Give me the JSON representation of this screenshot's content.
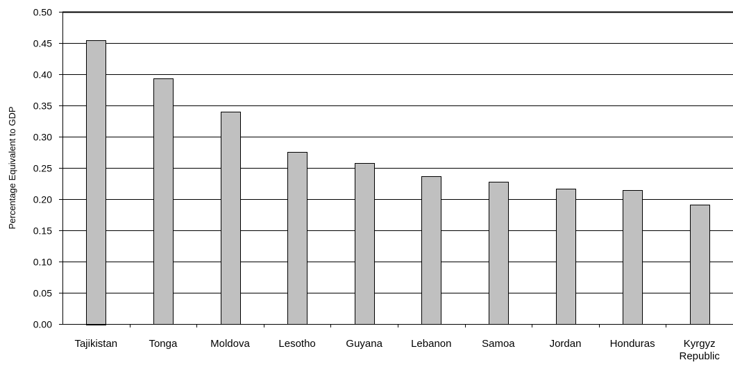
{
  "chart_data": {
    "type": "bar",
    "title": "",
    "xlabel": "",
    "ylabel": "Percentage Equivalent to GDP",
    "ylim": [
      0,
      0.5
    ],
    "ytick_step": 0.05,
    "ytick_labels": [
      "0.00",
      "0.05",
      "0.10",
      "0.15",
      "0.20",
      "0.25",
      "0.30",
      "0.35",
      "0.40",
      "0.45",
      "0.50"
    ],
    "grid": true,
    "legend": "none",
    "categories": [
      [
        "Tajikistan"
      ],
      [
        "Tonga"
      ],
      [
        "Moldova"
      ],
      [
        "Lesotho"
      ],
      [
        "Guyana"
      ],
      [
        "Lebanon"
      ],
      [
        "Samoa"
      ],
      [
        "Jordan"
      ],
      [
        "Honduras"
      ],
      [
        "Kyrgyz",
        "Republic"
      ]
    ],
    "values": [
      0.455,
      0.393,
      0.34,
      0.276,
      0.258,
      0.237,
      0.228,
      0.217,
      0.214,
      0.191
    ],
    "colors": {
      "bar_fill": "#c0c0c0",
      "bar_stroke": "#000000",
      "grid": "#000000",
      "axis": "#000000"
    }
  }
}
